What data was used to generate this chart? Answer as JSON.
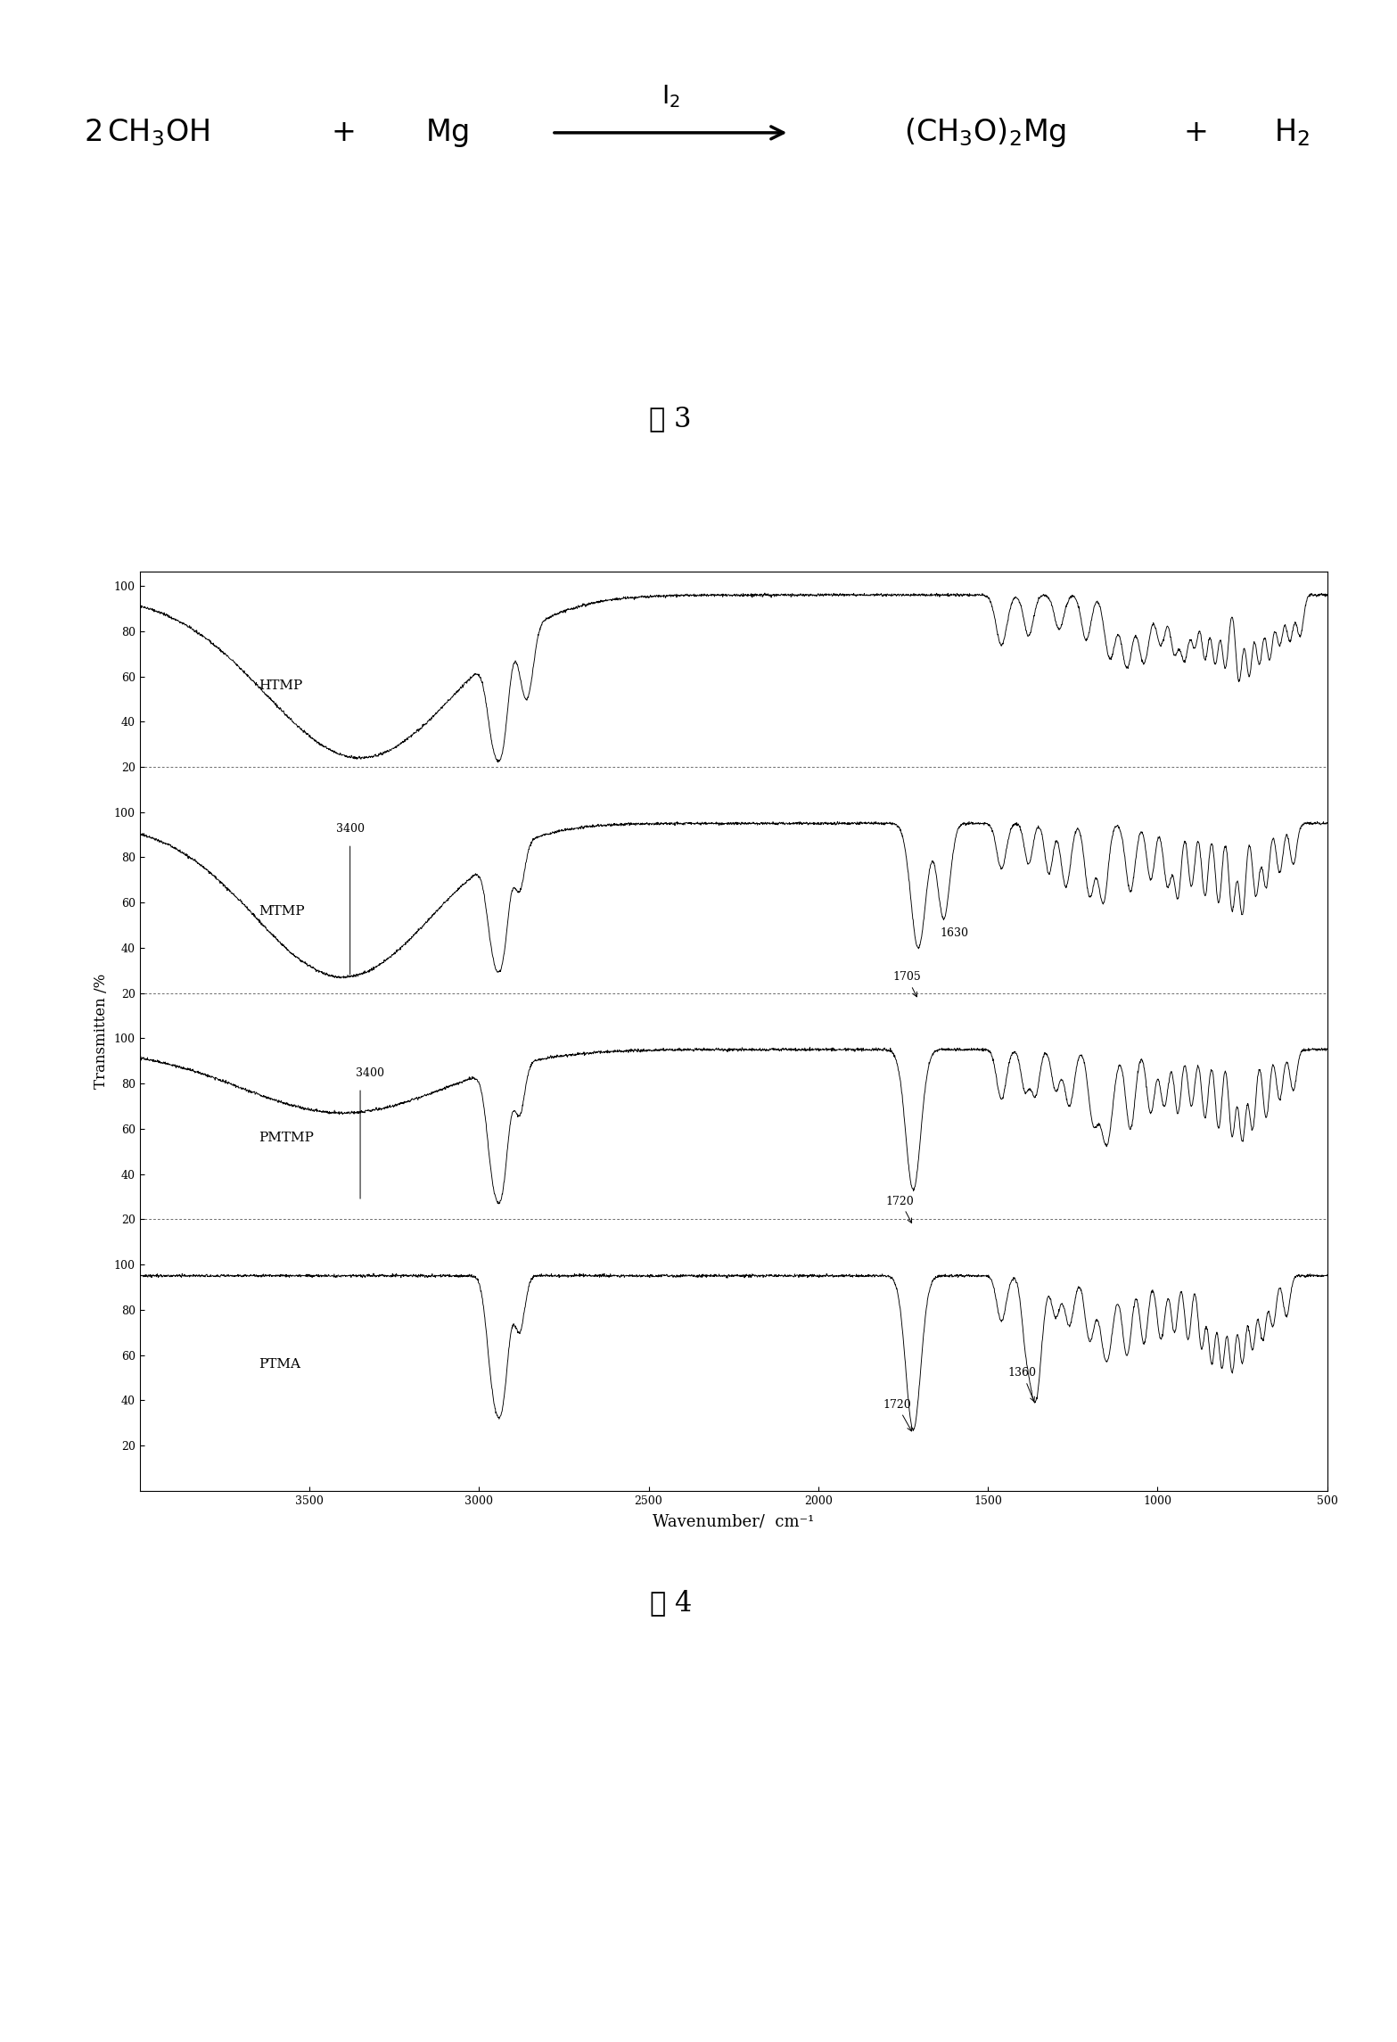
{
  "fig3_label": "图 3",
  "fig4_label": "图 4",
  "xlabel": "Wavenumber/  cm⁻¹",
  "ylabel": "Transmitten /%",
  "spectra_labels": [
    "HTMP",
    "MTMP",
    "PMTMP",
    "PTMA"
  ],
  "xmin": 500,
  "xmax": 4000,
  "background_color": "#ffffff",
  "offsets": [
    240,
    160,
    80,
    0
  ],
  "scale": 0.8,
  "ytick_vals": [
    20,
    40,
    60,
    80,
    100
  ],
  "xtick_vals": [
    500,
    1000,
    1500,
    2000,
    2500,
    3000,
    3500
  ],
  "equation_fontsize": 24,
  "label_fontsize": 22,
  "xlabel_fontsize": 13,
  "ylabel_fontsize": 12,
  "annotation_fontsize": 9,
  "spectra_label_fontsize": 11
}
